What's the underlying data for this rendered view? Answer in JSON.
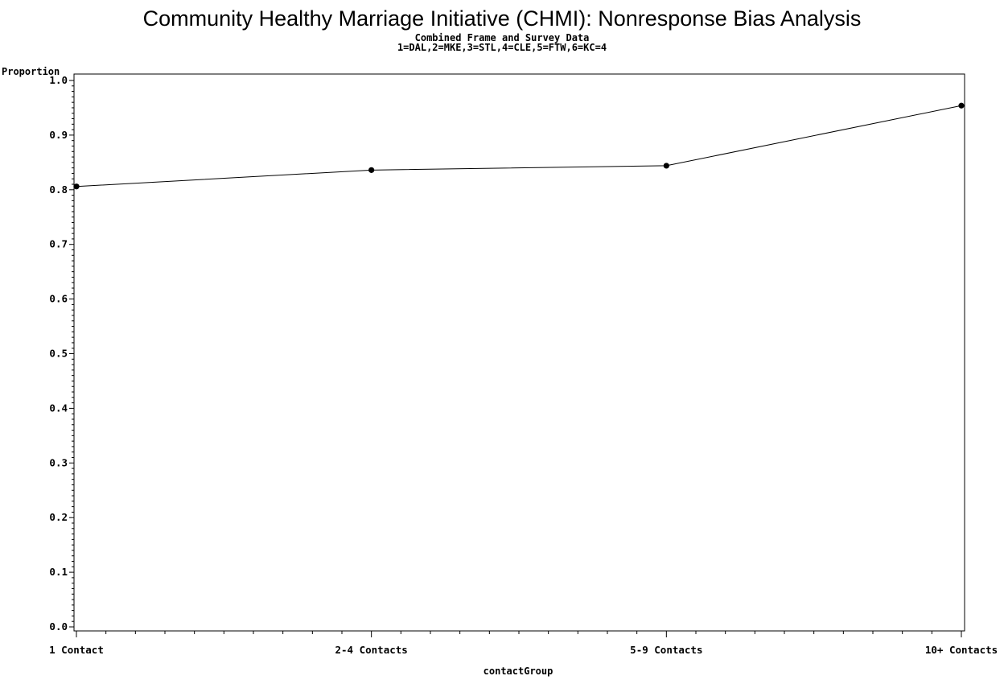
{
  "chart_data": {
    "type": "line",
    "title": "Community Healthy Marriage Initiative (CHMI): Nonresponse Bias Analysis",
    "subtitle": "Combined Frame and Survey Data",
    "subtitle2": "1=DAL,2=MKE,3=STL,4=CLE,5=FTW,6=KC=4",
    "xlabel": "contactGroup",
    "ylabel": "Proportion",
    "categories": [
      "1 Contact",
      "2-4 Contacts",
      "5-9 Contacts",
      "10+ Contacts"
    ],
    "values": [
      0.806,
      0.836,
      0.844,
      0.954
    ],
    "ylim": [
      0.0,
      1.0
    ],
    "yticks": [
      "0.0",
      "0.1",
      "0.2",
      "0.3",
      "0.4",
      "0.5",
      "0.6",
      "0.7",
      "0.8",
      "0.9",
      "1.0"
    ],
    "grid": false,
    "legend": "none",
    "line_color": "#000000"
  }
}
